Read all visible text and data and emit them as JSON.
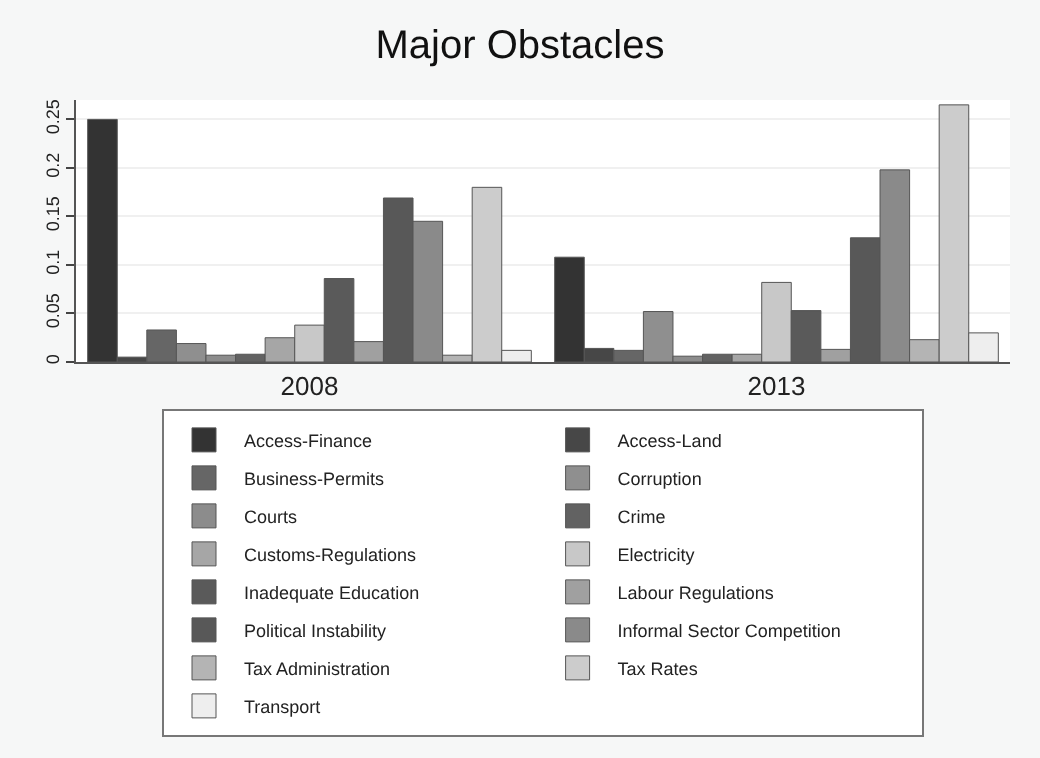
{
  "chart_data": {
    "type": "bar",
    "title": "Major Obstacles",
    "categories": [
      "2008",
      "2013"
    ],
    "series": [
      {
        "name": "Access-Finance",
        "color": "#333333",
        "values": [
          0.25,
          0.108
        ]
      },
      {
        "name": "Access-Land",
        "color": "#474747",
        "values": [
          0.005,
          0.014
        ]
      },
      {
        "name": "Business-Permits",
        "color": "#666666",
        "values": [
          0.033,
          0.012
        ]
      },
      {
        "name": "Corruption",
        "color": "#8f8f8f",
        "values": [
          0.019,
          0.052
        ]
      },
      {
        "name": "Courts",
        "color": "#8c8c8c",
        "values": [
          0.007,
          0.006
        ]
      },
      {
        "name": "Crime",
        "color": "#626262",
        "values": [
          0.008,
          0.008
        ]
      },
      {
        "name": "Customs-Regulations",
        "color": "#a6a6a6",
        "values": [
          0.025,
          0.008
        ]
      },
      {
        "name": "Electricity",
        "color": "#c8c8c8",
        "values": [
          0.038,
          0.082
        ]
      },
      {
        "name": "Inadequate Education",
        "color": "#5a5a5a",
        "values": [
          0.086,
          0.053
        ]
      },
      {
        "name": "Labour Regulations",
        "color": "#a0a0a0",
        "values": [
          0.021,
          0.013
        ]
      },
      {
        "name": "Political Instability",
        "color": "#585858",
        "values": [
          0.169,
          0.128
        ]
      },
      {
        "name": "Informal Sector Competition",
        "color": "#8a8a8a",
        "values": [
          0.145,
          0.198
        ]
      },
      {
        "name": "Tax Administration",
        "color": "#b4b4b4",
        "values": [
          0.007,
          0.023
        ]
      },
      {
        "name": "Tax Rates",
        "color": "#cccccc",
        "values": [
          0.18,
          0.265
        ]
      },
      {
        "name": "Transport",
        "color": "#eeeeee",
        "values": [
          0.012,
          0.03
        ]
      }
    ],
    "ylim": [
      0,
      0.27
    ],
    "yticks": [
      {
        "value": 0,
        "label": "0"
      },
      {
        "value": 0.05,
        "label": "0.05"
      },
      {
        "value": 0.1,
        "label": "0.1"
      },
      {
        "value": 0.15,
        "label": "0.15"
      },
      {
        "value": 0.2,
        "label": "0.2"
      },
      {
        "value": 0.25,
        "label": "0.25"
      }
    ],
    "grid": "y",
    "legend": "bottom"
  }
}
